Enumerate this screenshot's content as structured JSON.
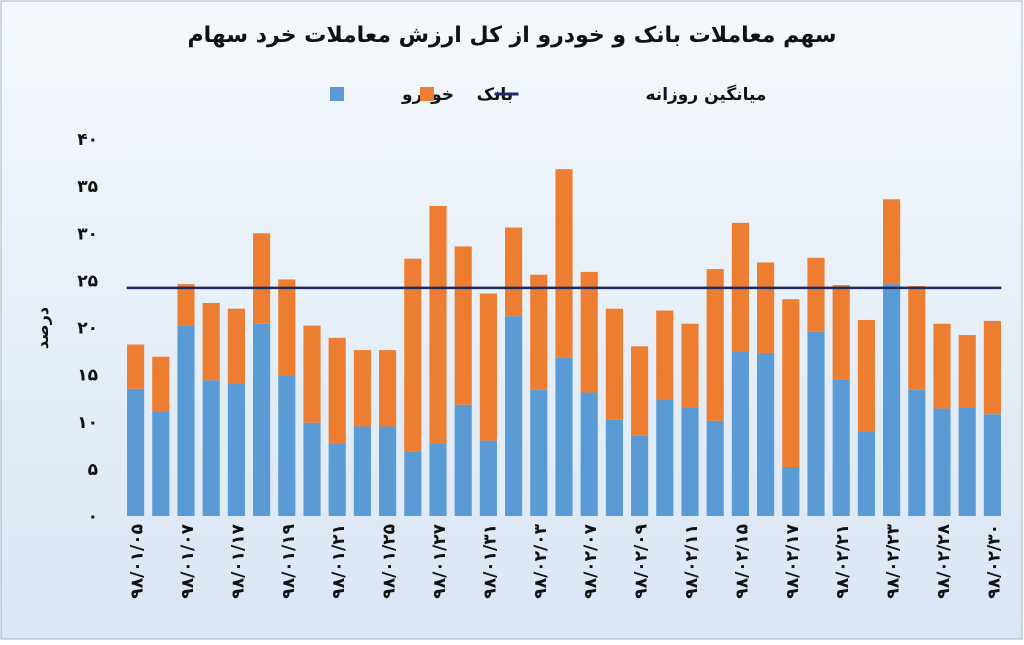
{
  "chart_data": {
    "type": "bar",
    "stacked": true,
    "title": "سهم معاملات بانک و خودرو از کل ارزش معاملات خرد سهام",
    "y_label": "درصد",
    "categories": [
      "۹۸/۰۱/۰۵",
      null,
      "۹۸/۰۱/۰۷",
      null,
      "۹۸/۰۱/۱۷",
      null,
      "۹۸/۰۱/۱۹",
      null,
      "۹۸/۰۱/۲۱",
      null,
      "۹۸/۰۱/۲۵",
      null,
      "۹۸/۰۱/۲۷",
      null,
      "۹۸/۰۱/۳۱",
      null,
      "۹۸/۰۲/۰۳",
      null,
      "۹۸/۰۲/۰۷",
      null,
      "۹۸/۰۲/۰۹",
      null,
      "۹۸/۰۲/۱۱",
      null,
      "۹۸/۰۲/۱۵",
      null,
      "۹۸/۰۲/۱۷",
      null,
      "۹۸/۰۲/۲۱",
      null,
      "۹۸/۰۲/۲۳",
      null,
      "۹۸/۰۲/۲۸",
      null,
      "۹۸/۰۲/۳۰"
    ],
    "series": [
      {
        "name": "خودرو",
        "color": "#5b9bd5",
        "values": [
          13.5,
          11.1,
          20.2,
          14.4,
          14.1,
          20.4,
          14.9,
          9.9,
          7.7,
          9.5,
          9.5,
          6.8,
          7.7,
          11.8,
          8.0,
          21.2,
          13.4,
          16.8,
          13.1,
          10.2,
          8.5,
          12.4,
          11.5,
          10.1,
          17.5,
          17.3,
          5.2,
          19.6,
          14.5,
          9.0,
          24.6,
          13.4,
          11.4,
          11.5,
          10.8
        ]
      },
      {
        "name": "بانک",
        "color": "#ed7d31",
        "values": [
          4.7,
          5.8,
          4.4,
          8.2,
          7.9,
          9.6,
          10.2,
          10.3,
          11.2,
          8.1,
          8.1,
          20.5,
          25.2,
          16.8,
          15.6,
          9.4,
          12.2,
          20.0,
          12.8,
          11.8,
          9.5,
          9.4,
          8.9,
          16.1,
          13.6,
          9.6,
          17.8,
          7.8,
          10.0,
          11.8,
          9.0,
          11.0,
          9.0,
          7.7,
          9.9
        ]
      }
    ],
    "reference_line": {
      "name": "میانگین روزانه",
      "color": "#1f2a5c",
      "value": 24.2
    },
    "ylim": [
      0,
      40
    ],
    "yticks": [
      {
        "value": 0,
        "label": "۰"
      },
      {
        "value": 5,
        "label": "۵"
      },
      {
        "value": 10,
        "label": "۱۰"
      },
      {
        "value": 15,
        "label": "۱۵"
      },
      {
        "value": 20,
        "label": "۲۰"
      },
      {
        "value": 25,
        "label": "۲۵"
      },
      {
        "value": 30,
        "label": "۳۰"
      },
      {
        "value": 35,
        "label": "۳۵"
      },
      {
        "value": 40,
        "label": "۴۰"
      }
    ],
    "grid": false
  }
}
